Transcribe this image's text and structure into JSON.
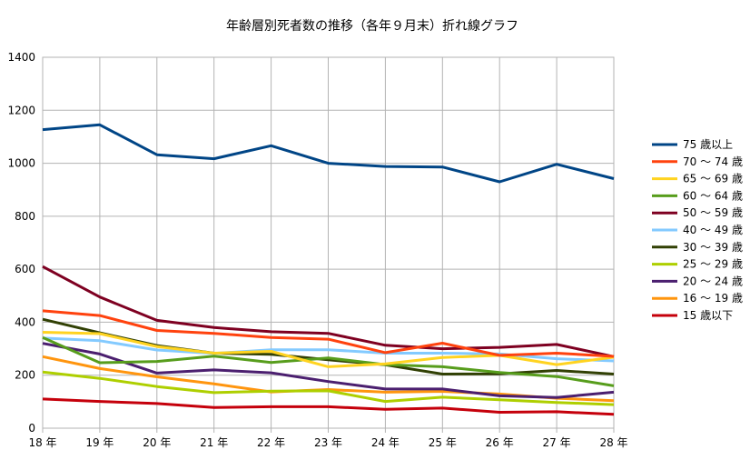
{
  "chart_data": {
    "type": "line",
    "title": "年齢層別死者数の推移（各年９月末）折れ線グラフ",
    "xlabel": "",
    "ylabel": "",
    "categories": [
      "18 年",
      "19 年",
      "20 年",
      "21 年",
      "22 年",
      "23 年",
      "24 年",
      "25 年",
      "26 年",
      "27 年",
      "28 年"
    ],
    "ylim": [
      0,
      1400
    ],
    "yticks": [
      0,
      200,
      400,
      600,
      800,
      1000,
      1200,
      1400
    ],
    "grid": true,
    "legend_position": "right",
    "series": [
      {
        "name": "75 歳以上",
        "color": "#004586",
        "values": [
          1127,
          1145,
          1032,
          1017,
          1066,
          1000,
          988,
          986,
          930,
          996,
          942
        ]
      },
      {
        "name": "70 ～ 74 歳",
        "color": "#ff420e",
        "values": [
          443,
          425,
          369,
          358,
          342,
          336,
          285,
          321,
          275,
          283,
          271
        ]
      },
      {
        "name": "65 ～ 69 歳",
        "color": "#ffd320",
        "values": [
          362,
          357,
          308,
          283,
          290,
          232,
          243,
          267,
          275,
          240,
          268
        ]
      },
      {
        "name": "60 ～ 64 歳",
        "color": "#579d1c",
        "values": [
          342,
          247,
          252,
          272,
          248,
          265,
          240,
          232,
          210,
          195,
          160
        ]
      },
      {
        "name": "50 ～ 59 歳",
        "color": "#7e0021",
        "values": [
          610,
          495,
          407,
          380,
          364,
          358,
          313,
          300,
          305,
          316,
          270
        ]
      },
      {
        "name": "40 ～ 49 歳",
        "color": "#83caff",
        "values": [
          340,
          330,
          295,
          282,
          296,
          296,
          283,
          283,
          280,
          262,
          254
        ]
      },
      {
        "name": "30 ～ 39 歳",
        "color": "#314004",
        "values": [
          411,
          360,
          312,
          283,
          279,
          258,
          239,
          204,
          205,
          218,
          204
        ]
      },
      {
        "name": "25 ～ 29 歳",
        "color": "#aecf00",
        "values": [
          212,
          188,
          157,
          134,
          140,
          141,
          101,
          117,
          107,
          97,
          89
        ]
      },
      {
        "name": "20 ～ 24 歳",
        "color": "#4b1f6f",
        "values": [
          320,
          280,
          208,
          220,
          209,
          176,
          148,
          148,
          122,
          116,
          136
        ]
      },
      {
        "name": "16 ～ 19 歳",
        "color": "#ff950e",
        "values": [
          270,
          225,
          194,
          167,
          137,
          146,
          136,
          139,
          129,
          113,
          104
        ]
      },
      {
        "name": "15 歳以下",
        "color": "#c5000b",
        "values": [
          110,
          101,
          93,
          78,
          81,
          81,
          71,
          76,
          60,
          62,
          52
        ]
      }
    ]
  }
}
